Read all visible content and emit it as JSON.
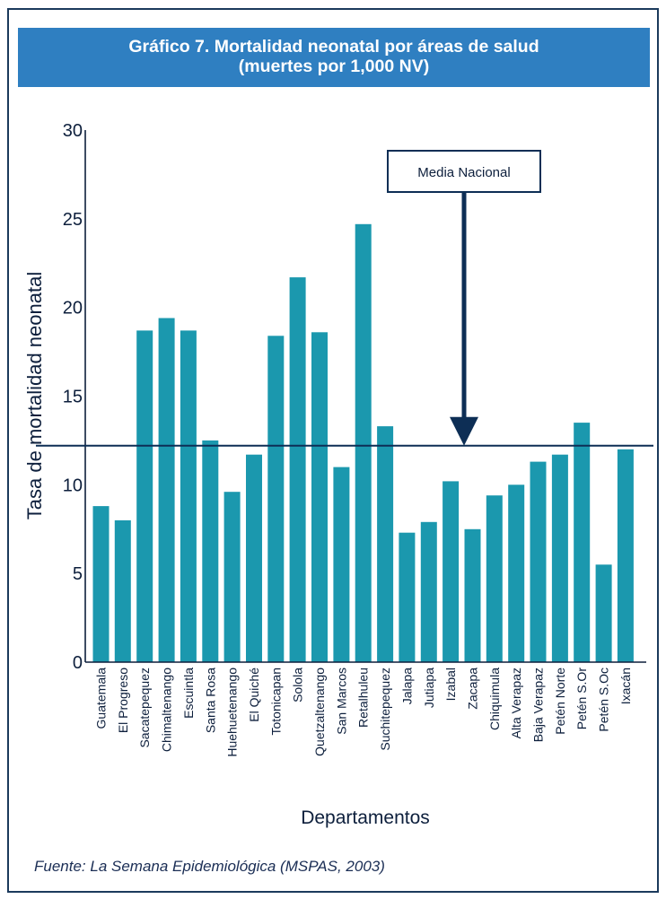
{
  "chart_data": {
    "type": "bar",
    "title_line1": "Gráfico 7. Mortalidad neonatal por áreas de salud",
    "title_line2": "(muertes por 1,000 NV)",
    "xlabel": "Departamentos",
    "ylabel": "Tasa de mortalidad neonatal",
    "ylim": [
      0,
      30
    ],
    "yticks": [
      "0",
      "5",
      "10",
      "15",
      "20",
      "25",
      "30"
    ],
    "categories": [
      "Guatemala",
      "El Progreso",
      "Sacatepequez",
      "Chimaltenango",
      "Escuintla",
      "Santa Rosa",
      "Huehuetenango",
      "El Quiché",
      "Totonicapan",
      "Solola",
      "Quetzaltenango",
      "San Marcos",
      "Retalhuleu",
      "Suchitepequez",
      "Jalapa",
      "Jutiapa",
      "Izabal",
      "Zacapa",
      "Chiquimula",
      "Alta Verapaz",
      "Baja Verapaz",
      "Petén Norte",
      "Petén S.Or",
      "Petén S.Oc",
      "Ixacán"
    ],
    "values": [
      8.8,
      8.0,
      18.7,
      19.4,
      18.7,
      12.5,
      9.6,
      11.7,
      18.4,
      21.7,
      18.6,
      11.0,
      24.7,
      13.3,
      7.3,
      7.9,
      10.2,
      7.5,
      9.4,
      10.0,
      11.3,
      11.7,
      13.5,
      5.5,
      12.0
    ],
    "reference_line": {
      "value": 12.2,
      "label": "Media Nacional"
    },
    "grid": false,
    "legend": "none",
    "colors": {
      "bar": "#1b98ae",
      "frame": "#1b3a5c",
      "title_bg": "#2f7fc1",
      "title_text": "#ffffff",
      "axis": "#0d1f3c"
    }
  },
  "source": "Fuente: La Semana Epidemiológica (MSPAS, 2003)"
}
